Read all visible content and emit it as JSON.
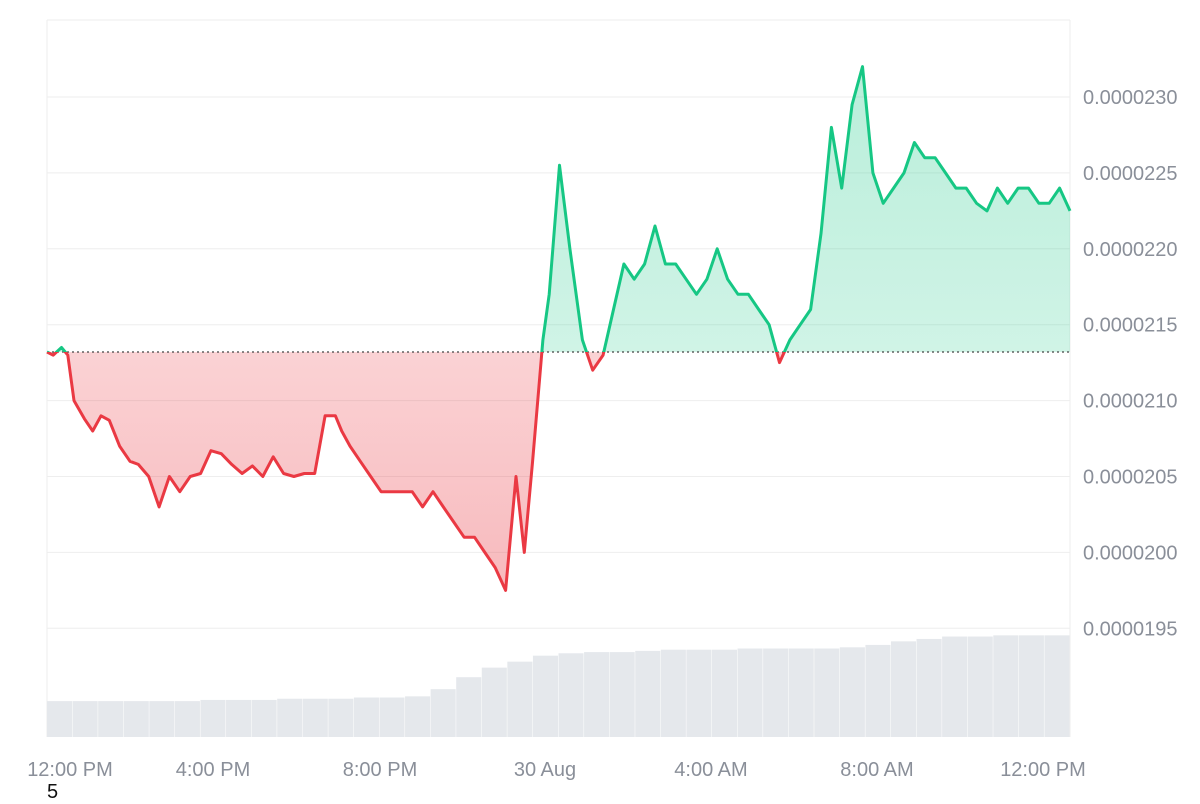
{
  "footnote": "5",
  "colors": {
    "up": "#16c784",
    "down": "#ea3943",
    "up_fill": "#16c784",
    "down_fill": "#ea3943",
    "grid": "#eeeeee",
    "volume": "#e5e8ec",
    "baseline": "#444444"
  },
  "chart_data": {
    "type": "area",
    "baseline_value": 2.132e-05,
    "ylim": [
      1.895e-05,
      2.34e-05
    ],
    "y_ticks": [
      1.95e-05,
      2e-05,
      2.05e-05,
      2.1e-05,
      2.15e-05,
      2.2e-05,
      2.25e-05,
      2.3e-05
    ],
    "y_tick_labels": [
      "0.0000195",
      "0.0000200",
      "0.0000205",
      "0.0000210",
      "0.0000215",
      "0.0000220",
      "0.0000225",
      "0.0000230"
    ],
    "x_tick_labels": [
      "12:00 PM",
      "4:00 PM",
      "8:00 PM",
      "30 Aug",
      "4:00 AM",
      "8:00 AM",
      "12:00 PM"
    ],
    "x_tick_hours": [
      0,
      4,
      8,
      12,
      16,
      20,
      24
    ],
    "grid": true,
    "series": [
      {
        "x_hours": [
          0,
          0.15,
          0.35,
          0.5,
          0.65,
          0.9,
          1.1,
          1.3,
          1.5,
          1.75,
          2.0,
          2.2,
          2.45,
          2.7,
          2.95,
          3.2,
          3.45,
          3.7,
          3.95,
          4.2,
          4.45,
          4.7,
          4.95,
          5.2,
          5.45,
          5.7,
          5.95,
          6.2,
          6.45,
          6.7,
          6.95,
          7.1,
          7.3,
          7.55,
          7.8,
          8.05,
          8.3,
          8.55,
          8.8,
          9.05,
          9.3,
          9.55,
          9.8,
          10.05,
          10.3,
          10.55,
          10.8,
          11.05,
          11.3,
          11.5,
          11.7,
          11.95,
          12.1,
          12.35,
          12.6,
          12.9,
          13.15,
          13.4,
          13.65,
          13.9,
          14.15,
          14.4,
          14.65,
          14.9,
          15.15,
          15.4,
          15.65,
          15.9,
          16.15,
          16.4,
          16.65,
          16.9,
          17.15,
          17.4,
          17.65,
          17.9,
          18.15,
          18.4,
          18.65,
          18.9,
          19.15,
          19.4,
          19.65,
          19.9,
          20.15,
          20.4,
          20.65,
          20.9,
          21.15,
          21.4,
          21.65,
          21.9,
          22.15,
          22.4,
          22.65,
          22.9,
          23.15,
          23.4,
          23.65,
          23.9,
          24.15,
          24.4,
          24.65
        ],
        "values": [
          2.132e-05,
          2.13e-05,
          2.135e-05,
          2.13e-05,
          2.1e-05,
          2.088e-05,
          2.08e-05,
          2.09e-05,
          2.087e-05,
          2.07e-05,
          2.06e-05,
          2.058e-05,
          2.05e-05,
          2.03e-05,
          2.05e-05,
          2.04e-05,
          2.05e-05,
          2.052e-05,
          2.067e-05,
          2.065e-05,
          2.058e-05,
          2.052e-05,
          2.057e-05,
          2.05e-05,
          2.063e-05,
          2.052e-05,
          2.05e-05,
          2.052e-05,
          2.052e-05,
          2.09e-05,
          2.09e-05,
          2.08e-05,
          2.07e-05,
          2.06e-05,
          2.05e-05,
          2.04e-05,
          2.04e-05,
          2.04e-05,
          2.04e-05,
          2.03e-05,
          2.04e-05,
          2.03e-05,
          2.02e-05,
          2.01e-05,
          2.01e-05,
          2e-05,
          1.99e-05,
          1.975e-05,
          2.05e-05,
          2e-05,
          2.06e-05,
          2.14e-05,
          2.17e-05,
          2.255e-05,
          2.2e-05,
          2.14e-05,
          2.12e-05,
          2.13e-05,
          2.16e-05,
          2.19e-05,
          2.18e-05,
          2.19e-05,
          2.215e-05,
          2.19e-05,
          2.19e-05,
          2.18e-05,
          2.17e-05,
          2.18e-05,
          2.2e-05,
          2.18e-05,
          2.17e-05,
          2.17e-05,
          2.16e-05,
          2.15e-05,
          2.125e-05,
          2.14e-05,
          2.15e-05,
          2.16e-05,
          2.21e-05,
          2.28e-05,
          2.24e-05,
          2.295e-05,
          2.32e-05,
          2.25e-05,
          2.23e-05,
          2.24e-05,
          2.25e-05,
          2.27e-05,
          2.26e-05,
          2.26e-05,
          2.25e-05,
          2.24e-05,
          2.24e-05,
          2.23e-05,
          2.225e-05,
          2.24e-05,
          2.23e-05,
          2.24e-05,
          2.24e-05,
          2.23e-05,
          2.23e-05,
          2.24e-05,
          2.225e-05
        ]
      }
    ],
    "volume": [
      0.3,
      0.3,
      0.3,
      0.3,
      0.3,
      0.3,
      0.31,
      0.31,
      0.31,
      0.32,
      0.32,
      0.32,
      0.33,
      0.33,
      0.34,
      0.4,
      0.5,
      0.58,
      0.63,
      0.68,
      0.7,
      0.71,
      0.71,
      0.72,
      0.73,
      0.73,
      0.73,
      0.74,
      0.74,
      0.74,
      0.74,
      0.75,
      0.77,
      0.8,
      0.82,
      0.84,
      0.84,
      0.85,
      0.85,
      0.85
    ]
  }
}
